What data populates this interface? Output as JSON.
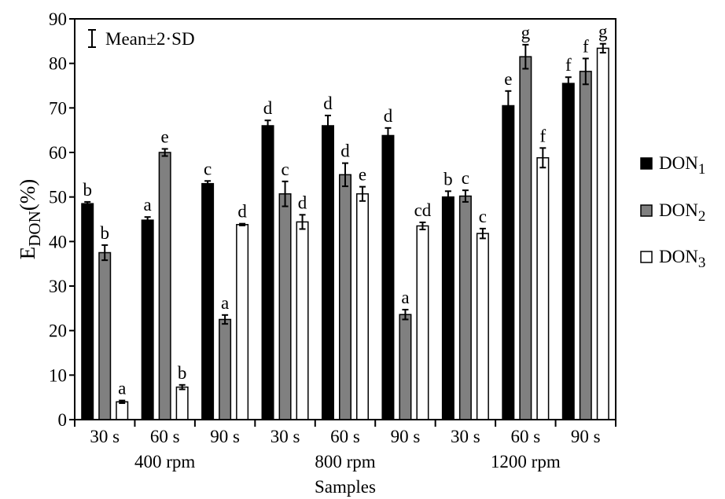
{
  "chart_data": {
    "type": "bar",
    "xlabel": "Samples",
    "ylabel_main": "E",
    "ylabel_sub": "DON",
    "ylabel_suffix": "(%)",
    "ylim": [
      0,
      90
    ],
    "yticks": [
      0,
      10,
      20,
      30,
      40,
      50,
      60,
      70,
      80,
      90
    ],
    "grid": false,
    "legend_position": "right",
    "errorbar_legend": "Mean±2·SD",
    "categories": [
      "30 s",
      "60 s",
      "90 s",
      "30 s",
      "60 s",
      "90 s",
      "30 s",
      "60 s",
      "90 s"
    ],
    "groups": [
      {
        "label": "400 rpm",
        "span": [
          0,
          2
        ]
      },
      {
        "label": "800 rpm",
        "span": [
          3,
          5
        ]
      },
      {
        "label": "1200 rpm",
        "span": [
          6,
          8
        ]
      }
    ],
    "series": [
      {
        "name_main": "DON",
        "name_sub": "1",
        "color": "#000000",
        "values": [
          48.5,
          44.8,
          53.0,
          66.0,
          66.0,
          63.8,
          50.0,
          70.5,
          75.5
        ],
        "errors": [
          0.4,
          0.7,
          0.6,
          1.2,
          2.3,
          1.7,
          1.3,
          3.3,
          1.4
        ],
        "letters": [
          "b",
          "a",
          "c",
          "d",
          "d",
          "d",
          "b",
          "e",
          "f"
        ]
      },
      {
        "name_main": "DON",
        "name_sub": "2",
        "color": "#808080",
        "values": [
          37.5,
          60.0,
          22.5,
          50.7,
          55.0,
          23.6,
          50.2,
          81.5,
          78.2
        ],
        "errors": [
          1.7,
          0.8,
          1.0,
          2.8,
          2.6,
          1.1,
          1.3,
          2.7,
          2.9
        ],
        "letters": [
          "b",
          "e",
          "a",
          "c",
          "d",
          "a",
          "c",
          "g",
          "f"
        ]
      },
      {
        "name_main": "DON",
        "name_sub": "3",
        "color": "#ffffff",
        "values": [
          4.0,
          7.3,
          43.8,
          44.4,
          50.7,
          43.5,
          41.8,
          58.8,
          83.4
        ],
        "errors": [
          0.3,
          0.5,
          0.2,
          1.6,
          1.6,
          0.8,
          1.1,
          2.2,
          1.0
        ],
        "letters": [
          "a",
          "b",
          "d",
          "d",
          "e",
          "cd",
          "c",
          "f",
          "g"
        ]
      }
    ]
  }
}
